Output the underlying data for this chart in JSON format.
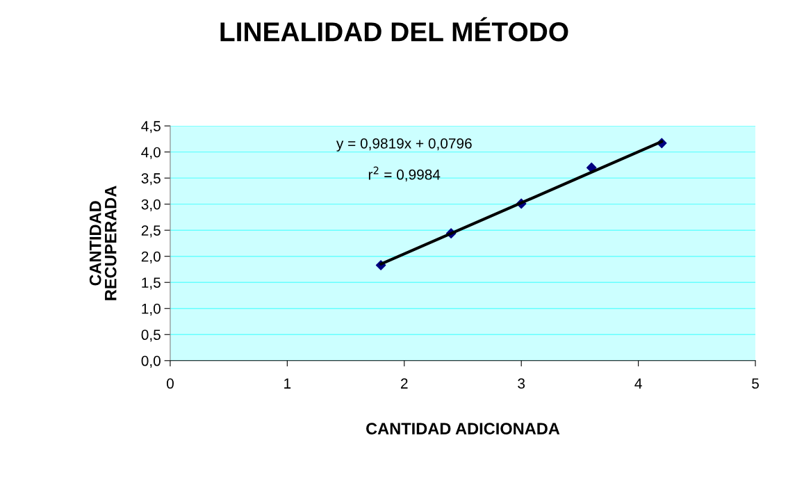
{
  "chart_data": {
    "type": "scatter",
    "title": "LINEALIDAD DEL MÉTODO",
    "xlabel": "CANTIDAD ADICIONADA",
    "ylabel": "CANTIDAD\nRECUPERADA",
    "x": [
      1.8,
      2.4,
      3.0,
      3.6,
      4.2
    ],
    "series": [
      {
        "color": "#000080",
        "marker": "diamond",
        "values": [
          1.83,
          2.44,
          3.01,
          3.7,
          4.17
        ]
      },
      {
        "type": "line",
        "color": "#000000",
        "marker": "none",
        "line_style": "solid",
        "x": [
          1.8,
          4.2
        ],
        "values": [
          1.85,
          4.2
        ]
      }
    ],
    "annotations": [
      "y = 0,9819x + 0,0796",
      "r$^{2}$ = 0,9984"
    ],
    "xlim": [
      0,
      5
    ],
    "xticks": [
      0,
      1,
      2,
      3,
      4,
      5
    ],
    "ylim": [
      0,
      4.5
    ],
    "yticks": [
      {
        "value": 0,
        "label": "0,0"
      },
      {
        "value": 0.5,
        "label": "0,5"
      },
      {
        "value": 1,
        "label": "1,0"
      },
      {
        "value": 1.5,
        "label": "1,5"
      },
      {
        "value": 2,
        "label": "2,0"
      },
      {
        "value": 2.5,
        "label": "2,5"
      },
      {
        "value": 3,
        "label": "3,0"
      },
      {
        "value": 3.5,
        "label": "3,5"
      },
      {
        "value": 4,
        "label": "4,0"
      },
      {
        "value": 4.5,
        "label": "4,5"
      }
    ],
    "grid": "y",
    "legend": false
  }
}
